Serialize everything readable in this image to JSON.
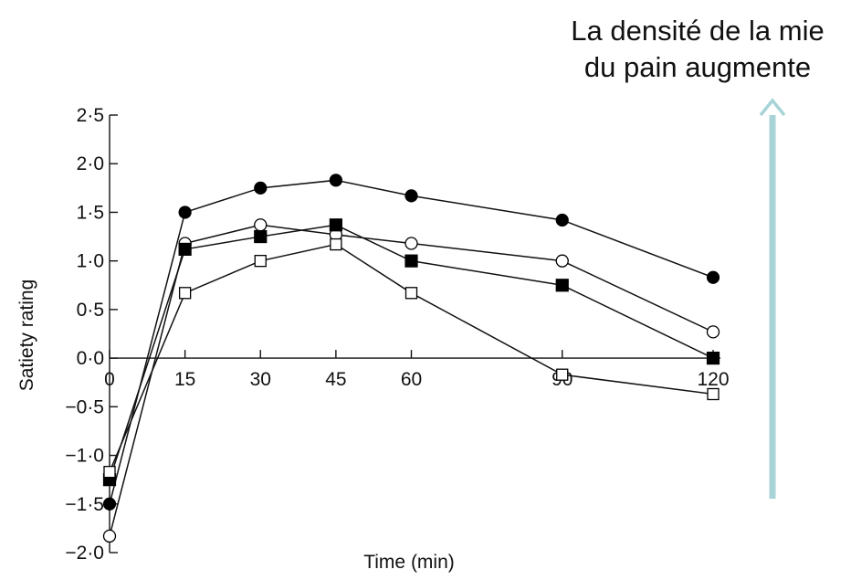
{
  "chart_data": {
    "type": "line",
    "title": "",
    "xlabel": "Time (min)",
    "ylabel": "Satiety rating",
    "x": [
      0,
      15,
      30,
      45,
      60,
      90,
      120
    ],
    "x_tick_labels": [
      "0",
      "15",
      "30",
      "45",
      "60",
      "90",
      "120"
    ],
    "y_ticks": [
      2.5,
      2.0,
      1.5,
      1.0,
      0.5,
      0.0,
      -0.5,
      -1.0,
      -1.5,
      -2.0
    ],
    "y_tick_labels": [
      "2·5",
      "2·0",
      "1·5",
      "1·0",
      "0·5",
      "0·0",
      "−0·5",
      "−1·0",
      "−1·5",
      "−2·0"
    ],
    "xlim": [
      0,
      120
    ],
    "ylim": [
      -2.0,
      2.5
    ],
    "grid": false,
    "series": [
      {
        "marker": "filled-circle",
        "values": [
          -1.5,
          1.5,
          1.75,
          1.83,
          1.67,
          1.42,
          0.83
        ]
      },
      {
        "marker": "open-circle",
        "values": [
          -1.83,
          1.18,
          1.37,
          1.27,
          1.18,
          1.0,
          0.27
        ]
      },
      {
        "marker": "filled-square",
        "values": [
          -1.25,
          1.12,
          1.25,
          1.37,
          1.0,
          0.75,
          0.0
        ]
      },
      {
        "marker": "open-square",
        "values": [
          -1.17,
          0.67,
          1.0,
          1.17,
          0.67,
          -0.17,
          -0.37
        ]
      }
    ],
    "annotation": {
      "lines": [
        "La densité de la mie",
        "du pain augmente"
      ],
      "arrow_direction": "up",
      "arrow_color": "#a8d4d8"
    }
  }
}
